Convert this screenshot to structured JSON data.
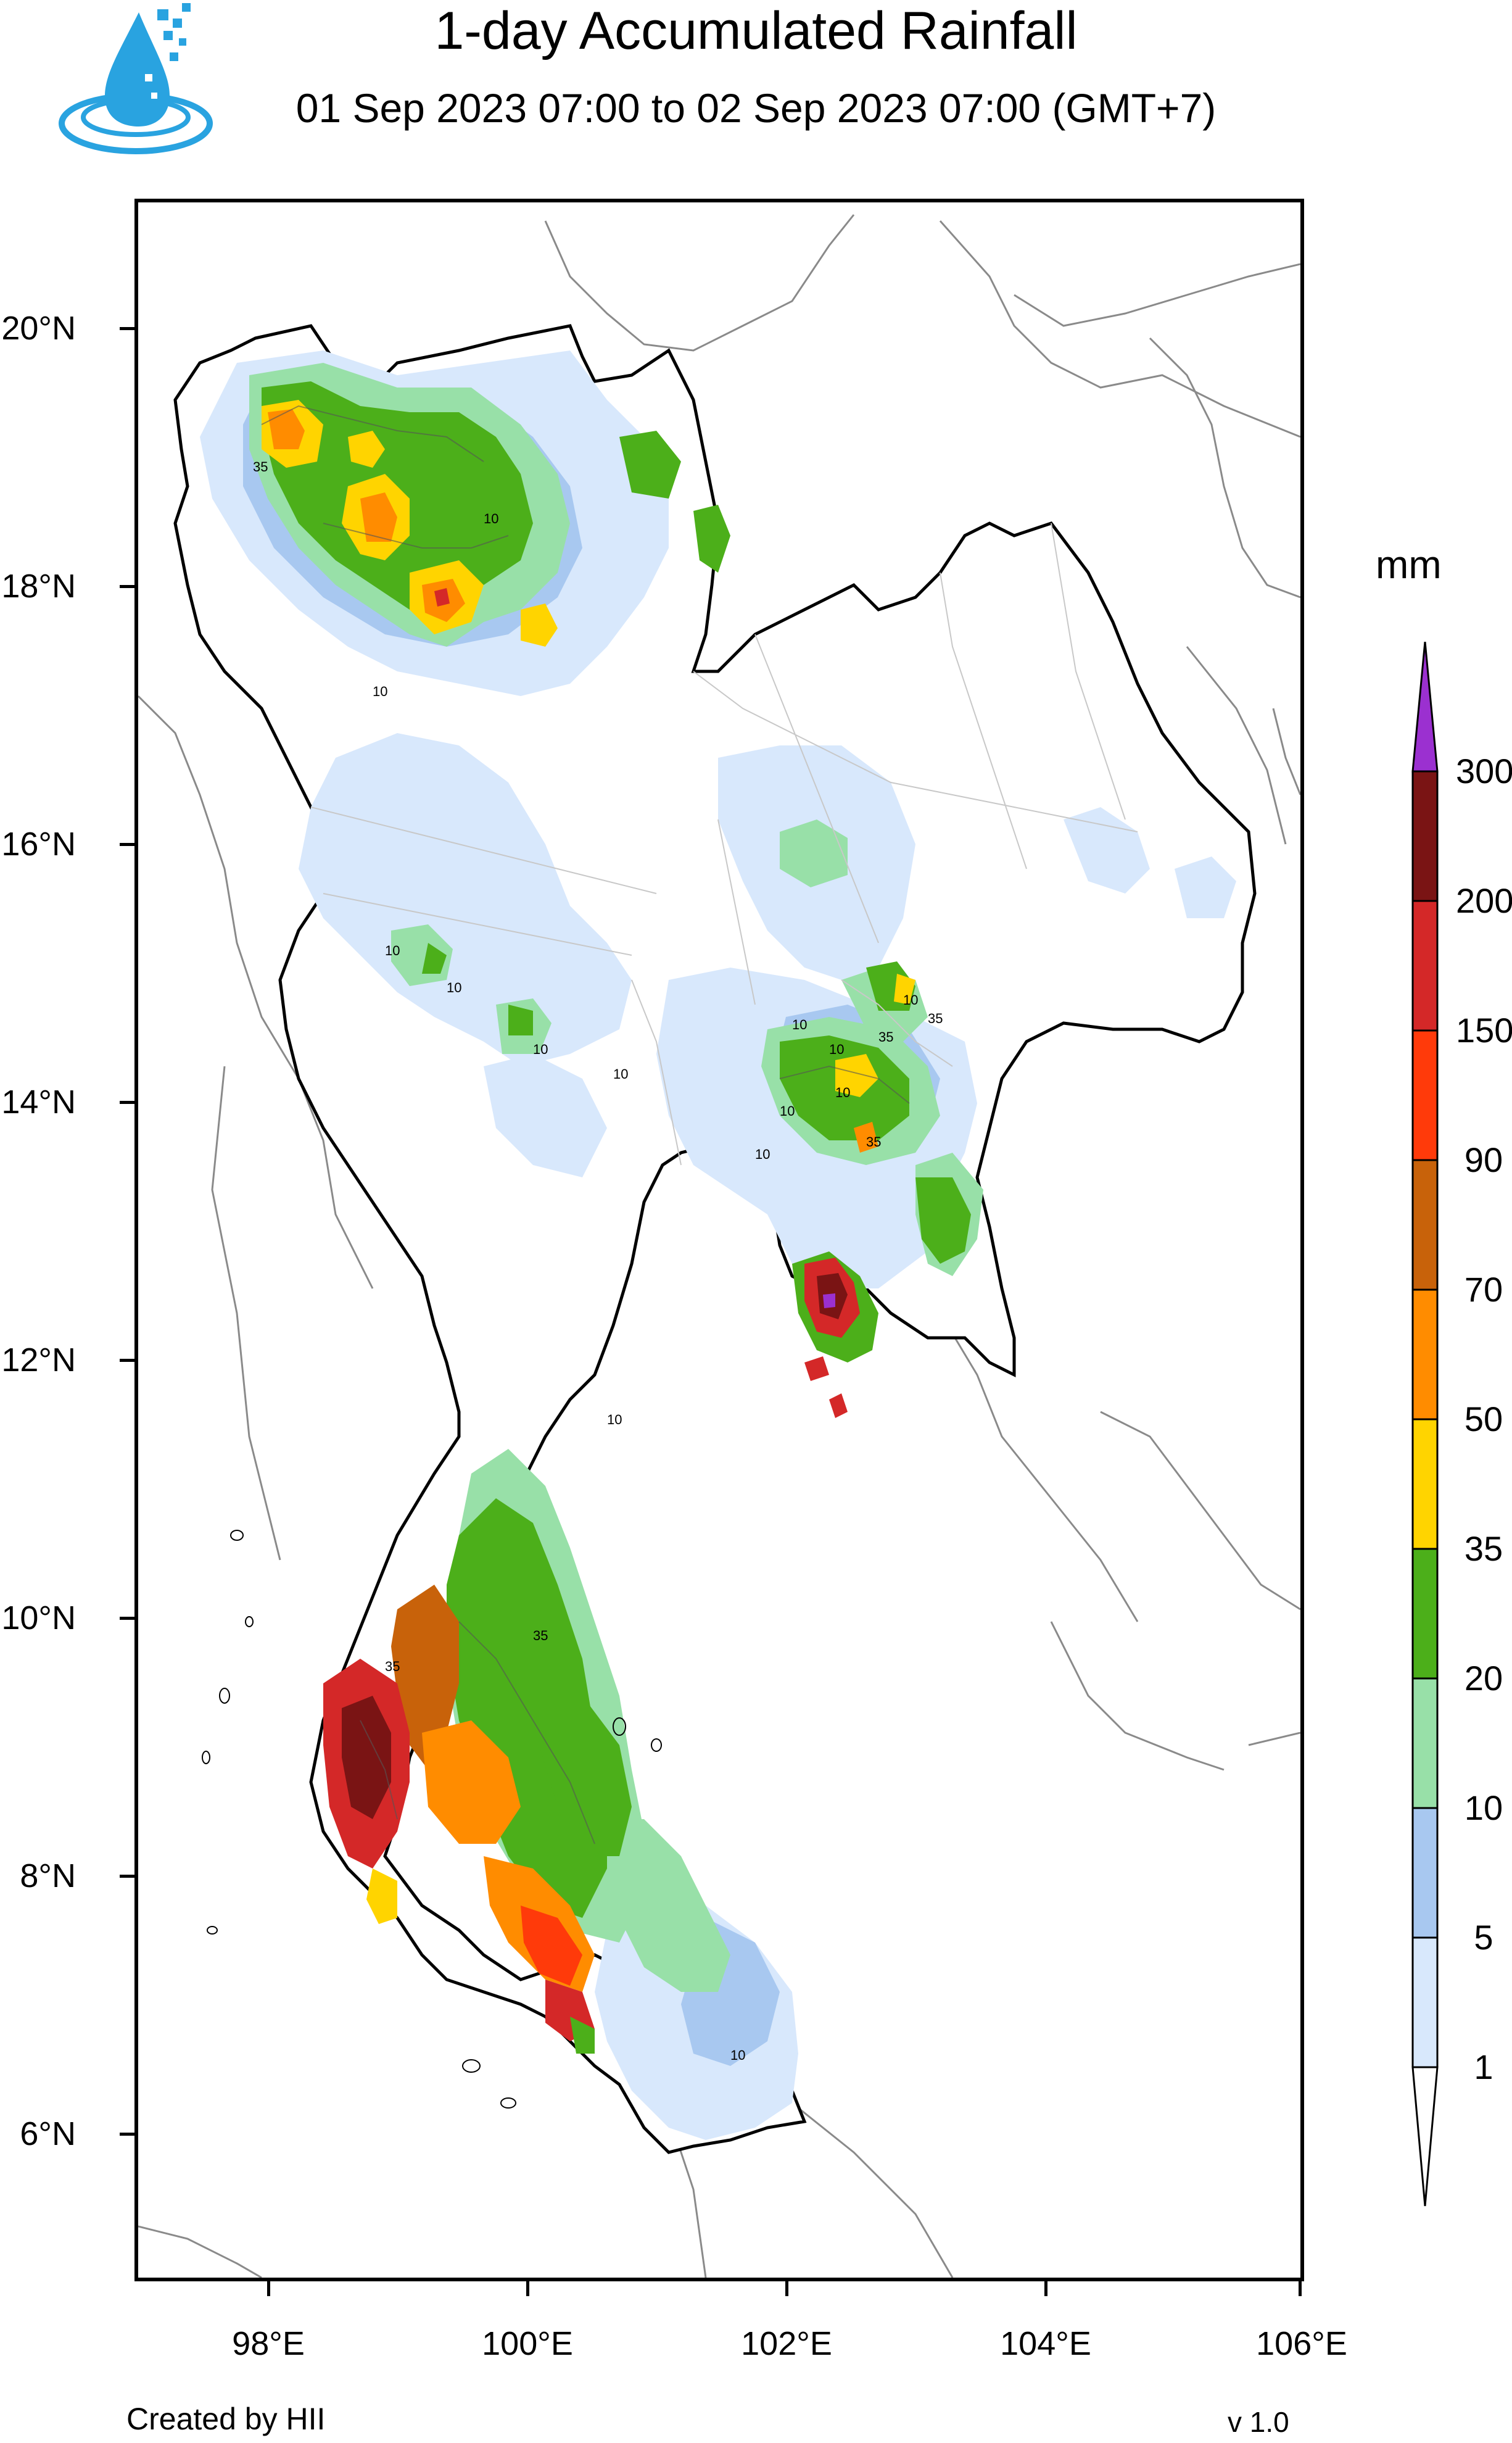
{
  "header": {
    "title": "1-day Accumulated Rainfall",
    "subtitle": "01 Sep 2023 07:00 to 02 Sep 2023 07:00 (GMT+7)"
  },
  "map": {
    "lat_ticks": [
      "20°N",
      "18°N",
      "16°N",
      "14°N",
      "12°N",
      "10°N",
      "8°N",
      "6°N"
    ],
    "lon_ticks": [
      "98°E",
      "100°E",
      "102°E",
      "104°E",
      "106°E"
    ],
    "contour_labels": [
      "35",
      "10",
      "10",
      "10",
      "10",
      "10",
      "10",
      "10",
      "35",
      "10",
      "35",
      "10",
      "10",
      "35",
      "10",
      "10",
      "10",
      "35",
      "35",
      "10"
    ]
  },
  "legend": {
    "unit": "mm",
    "levels": [
      "300",
      "200",
      "150",
      "90",
      "70",
      "50",
      "35",
      "20",
      "10",
      "5",
      "1"
    ],
    "colors": [
      "#9b30d0",
      "#7a1414",
      "#d42828",
      "#ff3a0a",
      "#c8620a",
      "#ff8c00",
      "#ffd400",
      "#4caf1a",
      "#98e0a8",
      "#a8c8f0",
      "#d8e8fc",
      "#ffffff"
    ]
  },
  "footer": {
    "credit": "Created by HII",
    "version": "v 1.0"
  }
}
